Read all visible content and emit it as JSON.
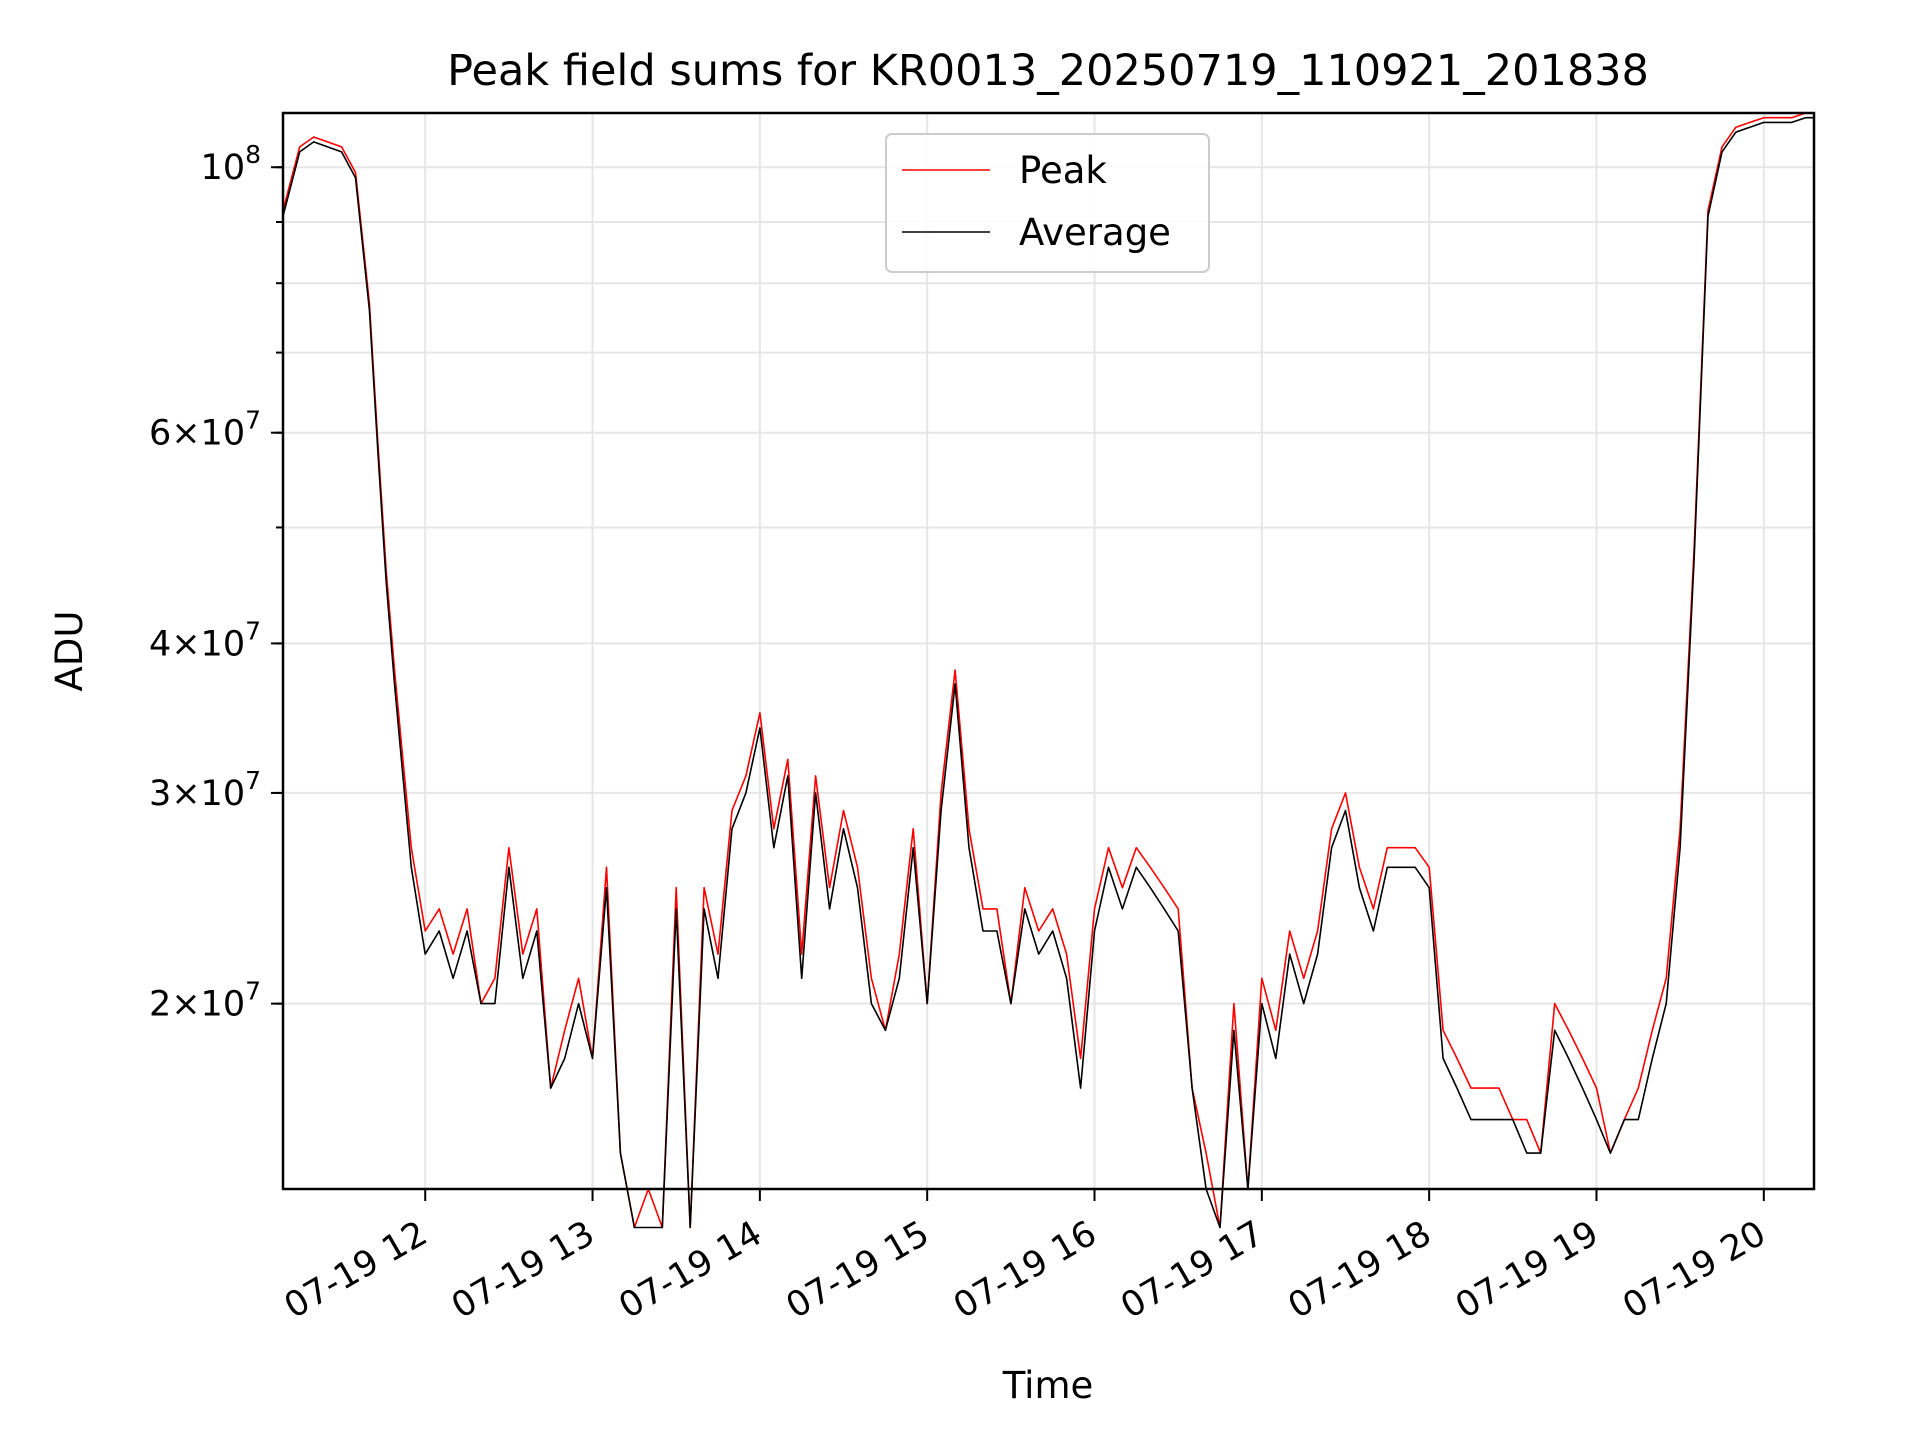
{
  "chart_data": {
    "type": "line",
    "title": "Peak field sums for KR0013_20250719_110921_201838",
    "xlabel": "Time",
    "ylabel": "ADU",
    "yscale": "log",
    "xlim": [
      "2025-07-19 11:09",
      "2025-07-19 20:18"
    ],
    "ylim": [
      14000000,
      111000000
    ],
    "grid": true,
    "legend_position": "upper center",
    "x_ticks": [
      "07-19 12",
      "07-19 13",
      "07-19 14",
      "07-19 15",
      "07-19 16",
      "07-19 17",
      "07-19 18",
      "07-19 19",
      "07-19 20"
    ],
    "y_ticks": [
      {
        "value": 100000000,
        "label": "10^8"
      },
      {
        "value": 60000000,
        "label": "6×10^7"
      },
      {
        "value": 40000000,
        "label": "4×10^7"
      },
      {
        "value": 30000000,
        "label": "3×10^7"
      },
      {
        "value": 20000000,
        "label": "2×10^7"
      }
    ],
    "series": [
      {
        "name": "Peak",
        "color": "#ff0000"
      },
      {
        "name": "Average",
        "color": "#000000"
      }
    ],
    "x": [
      "11:09",
      "11:15",
      "11:20",
      "11:25",
      "11:30",
      "11:35",
      "11:40",
      "11:43",
      "11:46",
      "11:49",
      "11:52",
      "11:55",
      "12:00",
      "12:05",
      "12:10",
      "12:15",
      "12:20",
      "12:25",
      "12:30",
      "12:35",
      "12:40",
      "12:45",
      "12:50",
      "12:55",
      "13:00",
      "13:05",
      "13:10",
      "13:15",
      "13:20",
      "13:25",
      "13:30",
      "13:35",
      "13:40",
      "13:45",
      "13:50",
      "13:55",
      "14:00",
      "14:05",
      "14:10",
      "14:15",
      "14:20",
      "14:25",
      "14:30",
      "14:35",
      "14:40",
      "14:45",
      "14:50",
      "14:55",
      "15:00",
      "15:05",
      "15:10",
      "15:15",
      "15:20",
      "15:25",
      "15:30",
      "15:35",
      "15:40",
      "15:45",
      "15:50",
      "15:55",
      "16:00",
      "16:05",
      "16:10",
      "16:15",
      "16:20",
      "16:25",
      "16:30",
      "16:35",
      "16:40",
      "16:45",
      "16:50",
      "16:55",
      "17:00",
      "17:05",
      "17:10",
      "17:15",
      "17:20",
      "17:25",
      "17:30",
      "17:35",
      "17:40",
      "17:45",
      "17:50",
      "17:55",
      "18:00",
      "18:05",
      "18:10",
      "18:15",
      "18:20",
      "18:25",
      "18:30",
      "18:35",
      "18:40",
      "18:45",
      "18:50",
      "18:55",
      "19:00",
      "19:05",
      "19:10",
      "19:15",
      "19:20",
      "19:25",
      "19:30",
      "19:35",
      "19:40",
      "19:45",
      "19:50",
      "19:55",
      "20:00",
      "20:05",
      "20:10",
      "20:15",
      "20:18"
    ],
    "peak": [
      92,
      104,
      106,
      105,
      104,
      99,
      77,
      59,
      46,
      38,
      32,
      27,
      23,
      24,
      22,
      24,
      20,
      21,
      27,
      22,
      24,
      17,
      19,
      21,
      18,
      26,
      15,
      13,
      14,
      13,
      25,
      13,
      25,
      22,
      29,
      31,
      35,
      28,
      32,
      22,
      31,
      25,
      29,
      26,
      21,
      19,
      22,
      28,
      20,
      30,
      38,
      28,
      24,
      24,
      20,
      25,
      23,
      24,
      22,
      18,
      24,
      27,
      25,
      27,
      26,
      25,
      24,
      17,
      15,
      13,
      20,
      14,
      21,
      19,
      23,
      21,
      23,
      28,
      30,
      26,
      24,
      27,
      27,
      27,
      26,
      19,
      18,
      17,
      17,
      17,
      16,
      16,
      15,
      20,
      19,
      18,
      17,
      15,
      16,
      17,
      19,
      21,
      28,
      48,
      92,
      104,
      108,
      109,
      110,
      110,
      110,
      111,
      111
    ],
    "average": [
      91,
      103,
      105,
      104,
      103,
      98,
      76,
      58,
      45,
      37,
      31,
      26,
      22,
      23,
      21,
      23,
      20,
      20,
      26,
      21,
      23,
      17,
      18,
      20,
      18,
      25,
      15,
      13,
      13,
      13,
      24,
      13,
      24,
      21,
      28,
      30,
      34,
      27,
      31,
      21,
      30,
      24,
      28,
      25,
      20,
      19,
      21,
      27,
      20,
      29,
      37,
      27,
      23,
      23,
      20,
      24,
      22,
      23,
      21,
      17,
      23,
      26,
      24,
      26,
      25,
      24,
      23,
      17,
      14,
      13,
      19,
      14,
      20,
      18,
      22,
      20,
      22,
      27,
      29,
      25,
      23,
      26,
      26,
      26,
      25,
      18,
      17,
      16,
      16,
      16,
      16,
      15,
      15,
      19,
      18,
      17,
      16,
      15,
      16,
      16,
      18,
      20,
      27,
      47,
      91,
      103,
      107,
      108,
      109,
      109,
      109,
      110,
      110
    ]
  }
}
